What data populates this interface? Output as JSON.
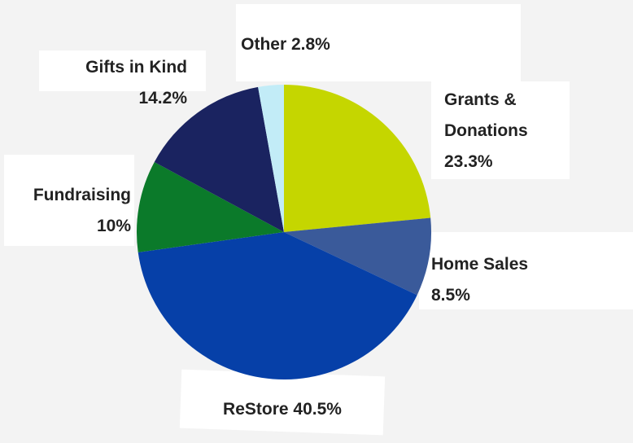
{
  "chart_data": {
    "type": "pie",
    "categories": [
      "Grants & Donations",
      "Home Sales",
      "ReStore",
      "Fundraising",
      "Gifts in Kind",
      "Other"
    ],
    "values": [
      23.3,
      8.5,
      40.5,
      10,
      14.2,
      2.8
    ],
    "value_labels": [
      "23.3%",
      "8.5%",
      "40.5%",
      "10%",
      "14.2%",
      "2.8%"
    ],
    "colors": [
      "#c5d600",
      "#3a5a9a",
      "#0640a8",
      "#0b7a2a",
      "#1a2360",
      "#c2ecf7"
    ]
  }
}
